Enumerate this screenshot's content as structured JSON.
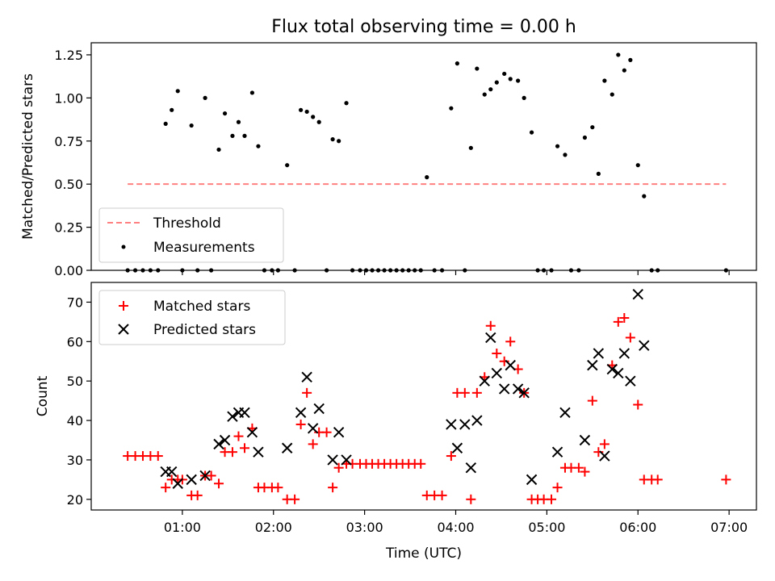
{
  "chart_data": [
    {
      "type": "scatter",
      "title": "Flux total observing time = 0.00 h",
      "xlabel": "",
      "ylabel": "Matched/Predicted stars",
      "xlim": [
        "00:00",
        "07:18"
      ],
      "ylim": [
        0,
        1.32
      ],
      "yticks": [
        0,
        0.25,
        0.5,
        0.75,
        1.0,
        1.25
      ],
      "ytick_labels": [
        "0.00",
        "0.25",
        "0.50",
        "0.75",
        "1.00",
        "1.25"
      ],
      "xticks": [
        "01:00",
        "02:00",
        "03:00",
        "04:00",
        "05:00",
        "06:00",
        "07:00"
      ],
      "grid": false,
      "legend": "lower-left",
      "threshold": {
        "name": "Threshold",
        "color": "#ff8080",
        "style": "dashed",
        "x": [
          "00:24",
          "06:58"
        ],
        "y": 0.5
      },
      "series": [
        {
          "name": "Measurements",
          "color": "#000000",
          "marker": "dot",
          "points": [
            [
              "00:24",
              0
            ],
            [
              "00:29",
              0
            ],
            [
              "00:34",
              0
            ],
            [
              "00:39",
              0
            ],
            [
              "00:44",
              0
            ],
            [
              "00:49",
              0.85
            ],
            [
              "00:53",
              0.93
            ],
            [
              "00:57",
              1.04
            ],
            [
              "01:00",
              0
            ],
            [
              "01:06",
              0.84
            ],
            [
              "01:10",
              0
            ],
            [
              "01:15",
              1.0
            ],
            [
              "01:19",
              0
            ],
            [
              "01:24",
              0.7
            ],
            [
              "01:28",
              0.91
            ],
            [
              "01:33",
              0.78
            ],
            [
              "01:37",
              0.86
            ],
            [
              "01:41",
              0.78
            ],
            [
              "01:46",
              1.03
            ],
            [
              "01:50",
              0.72
            ],
            [
              "01:54",
              0
            ],
            [
              "01:59",
              0
            ],
            [
              "02:03",
              0
            ],
            [
              "02:09",
              0.61
            ],
            [
              "02:14",
              0
            ],
            [
              "02:18",
              0.93
            ],
            [
              "02:22",
              0.92
            ],
            [
              "02:26",
              0.89
            ],
            [
              "02:30",
              0.86
            ],
            [
              "02:35",
              0
            ],
            [
              "02:39",
              0.76
            ],
            [
              "02:43",
              0.75
            ],
            [
              "02:48",
              0.97
            ],
            [
              "02:52",
              0
            ],
            [
              "02:57",
              0
            ],
            [
              "03:01",
              0
            ],
            [
              "03:05",
              0
            ],
            [
              "03:09",
              0
            ],
            [
              "03:13",
              0
            ],
            [
              "03:17",
              0
            ],
            [
              "03:21",
              0
            ],
            [
              "03:25",
              0
            ],
            [
              "03:29",
              0
            ],
            [
              "03:33",
              0
            ],
            [
              "03:37",
              0
            ],
            [
              "03:41",
              0.54
            ],
            [
              "03:46",
              0
            ],
            [
              "03:51",
              0
            ],
            [
              "03:57",
              0.94
            ],
            [
              "04:01",
              1.2
            ],
            [
              "04:06",
              0
            ],
            [
              "04:10",
              0.71
            ],
            [
              "04:14",
              1.17
            ],
            [
              "04:19",
              1.02
            ],
            [
              "04:23",
              1.05
            ],
            [
              "04:27",
              1.09
            ],
            [
              "04:32",
              1.14
            ],
            [
              "04:36",
              1.11
            ],
            [
              "04:41",
              1.1
            ],
            [
              "04:45",
              1.0
            ],
            [
              "04:50",
              0.8
            ],
            [
              "04:54",
              0
            ],
            [
              "04:58",
              0
            ],
            [
              "05:03",
              0
            ],
            [
              "05:07",
              0.72
            ],
            [
              "05:12",
              0.67
            ],
            [
              "05:16",
              0
            ],
            [
              "05:21",
              0
            ],
            [
              "05:25",
              0.77
            ],
            [
              "05:30",
              0.83
            ],
            [
              "05:34",
              0.56
            ],
            [
              "05:38",
              1.1
            ],
            [
              "05:43",
              1.02
            ],
            [
              "05:47",
              1.25
            ],
            [
              "05:51",
              1.16
            ],
            [
              "05:55",
              1.22
            ],
            [
              "06:00",
              0.61
            ],
            [
              "06:04",
              0.43
            ],
            [
              "06:09",
              0
            ],
            [
              "06:13",
              0
            ],
            [
              "06:58",
              0
            ]
          ]
        }
      ]
    },
    {
      "type": "scatter",
      "title": "",
      "xlabel": "Time (UTC)",
      "ylabel": "Count",
      "xlim": [
        "00:00",
        "07:18"
      ],
      "ylim": [
        17.3,
        75
      ],
      "yticks": [
        20,
        30,
        40,
        50,
        60,
        70
      ],
      "ytick_labels": [
        "20",
        "30",
        "40",
        "50",
        "60",
        "70"
      ],
      "xticks": [
        "01:00",
        "02:00",
        "03:00",
        "04:00",
        "05:00",
        "06:00",
        "07:00"
      ],
      "grid": false,
      "legend": "upper-left",
      "series": [
        {
          "name": "Matched stars",
          "color": "#ff0000",
          "marker": "plus",
          "points": [
            [
              "00:24",
              31
            ],
            [
              "00:29",
              31
            ],
            [
              "00:34",
              31
            ],
            [
              "00:39",
              31
            ],
            [
              "00:44",
              31
            ],
            [
              "00:49",
              23
            ],
            [
              "00:53",
              25
            ],
            [
              "00:57",
              25
            ],
            [
              "01:00",
              25
            ],
            [
              "01:06",
              21
            ],
            [
              "01:10",
              21
            ],
            [
              "01:15",
              26
            ],
            [
              "01:19",
              26
            ],
            [
              "01:24",
              24
            ],
            [
              "01:28",
              32
            ],
            [
              "01:33",
              32
            ],
            [
              "01:37",
              36
            ],
            [
              "01:41",
              33
            ],
            [
              "01:46",
              38
            ],
            [
              "01:50",
              23
            ],
            [
              "01:54",
              23
            ],
            [
              "01:59",
              23
            ],
            [
              "02:03",
              23
            ],
            [
              "02:09",
              20
            ],
            [
              "02:14",
              20
            ],
            [
              "02:18",
              39
            ],
            [
              "02:22",
              47
            ],
            [
              "02:26",
              34
            ],
            [
              "02:30",
              37
            ],
            [
              "02:35",
              37
            ],
            [
              "02:39",
              23
            ],
            [
              "02:43",
              28
            ],
            [
              "02:48",
              29
            ],
            [
              "02:52",
              29
            ],
            [
              "02:57",
              29
            ],
            [
              "03:01",
              29
            ],
            [
              "03:05",
              29
            ],
            [
              "03:09",
              29
            ],
            [
              "03:13",
              29
            ],
            [
              "03:17",
              29
            ],
            [
              "03:21",
              29
            ],
            [
              "03:25",
              29
            ],
            [
              "03:29",
              29
            ],
            [
              "03:33",
              29
            ],
            [
              "03:37",
              29
            ],
            [
              "03:41",
              21
            ],
            [
              "03:46",
              21
            ],
            [
              "03:51",
              21
            ],
            [
              "03:57",
              31
            ],
            [
              "04:01",
              47
            ],
            [
              "04:06",
              47
            ],
            [
              "04:10",
              20
            ],
            [
              "04:14",
              47
            ],
            [
              "04:19",
              51
            ],
            [
              "04:23",
              64
            ],
            [
              "04:27",
              57
            ],
            [
              "04:32",
              55
            ],
            [
              "04:36",
              60
            ],
            [
              "04:41",
              53
            ],
            [
              "04:45",
              47
            ],
            [
              "04:50",
              20
            ],
            [
              "04:54",
              20
            ],
            [
              "04:58",
              20
            ],
            [
              "05:03",
              20
            ],
            [
              "05:07",
              23
            ],
            [
              "05:12",
              28
            ],
            [
              "05:16",
              28
            ],
            [
              "05:21",
              28
            ],
            [
              "05:25",
              27
            ],
            [
              "05:30",
              45
            ],
            [
              "05:34",
              32
            ],
            [
              "05:38",
              34
            ],
            [
              "05:43",
              54
            ],
            [
              "05:47",
              65
            ],
            [
              "05:51",
              66
            ],
            [
              "05:55",
              61
            ],
            [
              "06:00",
              44
            ],
            [
              "06:04",
              25
            ],
            [
              "06:09",
              25
            ],
            [
              "06:13",
              25
            ],
            [
              "06:58",
              25
            ]
          ]
        },
        {
          "name": "Predicted stars",
          "color": "#000000",
          "marker": "x",
          "points": [
            [
              "00:49",
              27
            ],
            [
              "00:53",
              27
            ],
            [
              "00:57",
              24
            ],
            [
              "01:06",
              25
            ],
            [
              "01:15",
              26
            ],
            [
              "01:24",
              34
            ],
            [
              "01:28",
              35
            ],
            [
              "01:33",
              41
            ],
            [
              "01:37",
              42
            ],
            [
              "01:41",
              42
            ],
            [
              "01:46",
              37
            ],
            [
              "01:50",
              32
            ],
            [
              "02:09",
              33
            ],
            [
              "02:18",
              42
            ],
            [
              "02:22",
              51
            ],
            [
              "02:26",
              38
            ],
            [
              "02:30",
              43
            ],
            [
              "02:39",
              30
            ],
            [
              "02:43",
              37
            ],
            [
              "02:48",
              30
            ],
            [
              "03:57",
              39
            ],
            [
              "04:01",
              33
            ],
            [
              "04:06",
              39
            ],
            [
              "04:10",
              28
            ],
            [
              "04:14",
              40
            ],
            [
              "04:19",
              50
            ],
            [
              "04:23",
              61
            ],
            [
              "04:27",
              52
            ],
            [
              "04:32",
              48
            ],
            [
              "04:36",
              54
            ],
            [
              "04:41",
              48
            ],
            [
              "04:45",
              47
            ],
            [
              "04:50",
              25
            ],
            [
              "05:07",
              32
            ],
            [
              "05:12",
              42
            ],
            [
              "05:25",
              35
            ],
            [
              "05:30",
              54
            ],
            [
              "05:34",
              57
            ],
            [
              "05:38",
              31
            ],
            [
              "05:43",
              53
            ],
            [
              "05:47",
              52
            ],
            [
              "05:51",
              57
            ],
            [
              "05:55",
              50
            ],
            [
              "06:00",
              72
            ],
            [
              "06:04",
              59
            ]
          ]
        }
      ]
    }
  ]
}
